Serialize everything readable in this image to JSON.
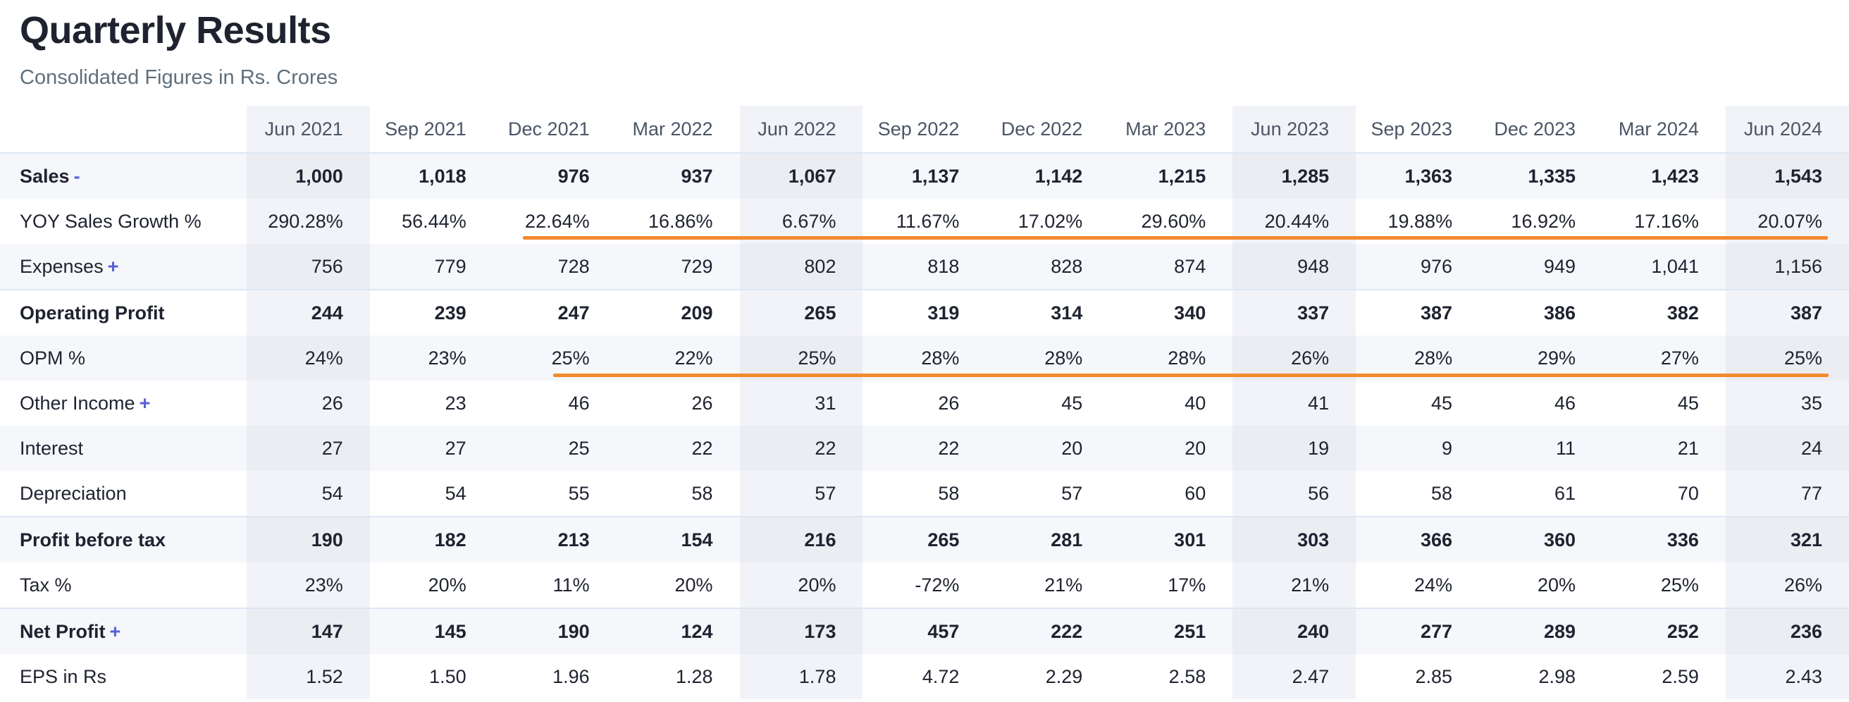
{
  "header": {
    "title": "Quarterly Results",
    "subtitle": "Consolidated Figures in Rs. Crores"
  },
  "table": {
    "columns": [
      "Jun 2021",
      "Sep 2021",
      "Dec 2021",
      "Mar 2022",
      "Jun 2022",
      "Sep 2022",
      "Dec 2022",
      "Mar 2023",
      "Jun 2023",
      "Sep 2023",
      "Dec 2023",
      "Mar 2024",
      "Jun 2024"
    ],
    "highlighted_columns": [
      "Jun 2021",
      "Jun 2022",
      "Jun 2023",
      "Jun 2024"
    ],
    "rows": [
      {
        "label": "Sales",
        "toggle": "-",
        "bold": true,
        "section": false,
        "values": [
          "1,000",
          "1,018",
          "976",
          "937",
          "1,067",
          "1,137",
          "1,142",
          "1,215",
          "1,285",
          "1,363",
          "1,335",
          "1,423",
          "1,543"
        ]
      },
      {
        "label": "YOY Sales Growth %",
        "toggle": "",
        "bold": false,
        "section": false,
        "values": [
          "290.28%",
          "56.44%",
          "22.64%",
          "16.86%",
          "6.67%",
          "11.67%",
          "17.02%",
          "29.60%",
          "20.44%",
          "19.88%",
          "16.92%",
          "17.16%",
          "20.07%"
        ]
      },
      {
        "label": "Expenses",
        "toggle": "+",
        "bold": false,
        "section": false,
        "values": [
          "756",
          "779",
          "728",
          "729",
          "802",
          "818",
          "828",
          "874",
          "948",
          "976",
          "949",
          "1,041",
          "1,156"
        ]
      },
      {
        "label": "Operating Profit",
        "toggle": "",
        "bold": true,
        "section": true,
        "values": [
          "244",
          "239",
          "247",
          "209",
          "265",
          "319",
          "314",
          "340",
          "337",
          "387",
          "386",
          "382",
          "387"
        ]
      },
      {
        "label": "OPM %",
        "toggle": "",
        "bold": false,
        "section": false,
        "values": [
          "24%",
          "23%",
          "25%",
          "22%",
          "25%",
          "28%",
          "28%",
          "28%",
          "26%",
          "28%",
          "29%",
          "27%",
          "25%"
        ]
      },
      {
        "label": "Other Income",
        "toggle": "+",
        "bold": false,
        "section": false,
        "values": [
          "26",
          "23",
          "46",
          "26",
          "31",
          "26",
          "45",
          "40",
          "41",
          "45",
          "46",
          "45",
          "35"
        ]
      },
      {
        "label": "Interest",
        "toggle": "",
        "bold": false,
        "section": false,
        "values": [
          "27",
          "27",
          "25",
          "22",
          "22",
          "22",
          "20",
          "20",
          "19",
          "9",
          "11",
          "21",
          "24"
        ]
      },
      {
        "label": "Depreciation",
        "toggle": "",
        "bold": false,
        "section": false,
        "values": [
          "54",
          "54",
          "55",
          "58",
          "57",
          "58",
          "57",
          "60",
          "56",
          "58",
          "61",
          "70",
          "77"
        ]
      },
      {
        "label": "Profit before tax",
        "toggle": "",
        "bold": true,
        "section": true,
        "values": [
          "190",
          "182",
          "213",
          "154",
          "216",
          "265",
          "281",
          "301",
          "303",
          "366",
          "360",
          "336",
          "321"
        ]
      },
      {
        "label": "Tax %",
        "toggle": "",
        "bold": false,
        "section": false,
        "values": [
          "23%",
          "20%",
          "11%",
          "20%",
          "20%",
          "-72%",
          "21%",
          "17%",
          "21%",
          "24%",
          "20%",
          "25%",
          "26%"
        ]
      },
      {
        "label": "Net Profit",
        "toggle": "+",
        "bold": true,
        "section": true,
        "values": [
          "147",
          "145",
          "190",
          "124",
          "173",
          "457",
          "222",
          "251",
          "240",
          "277",
          "289",
          "252",
          "236"
        ]
      },
      {
        "label": "EPS in Rs",
        "toggle": "",
        "bold": false,
        "section": false,
        "values": [
          "1.52",
          "1.50",
          "1.96",
          "1.28",
          "1.78",
          "4.72",
          "2.29",
          "2.58",
          "2.47",
          "2.85",
          "2.98",
          "2.59",
          "2.43"
        ]
      }
    ]
  },
  "annotations": {
    "underline_color": "#f28a2e",
    "underlined_rows": [
      "YOY Sales Growth %",
      "OPM %"
    ]
  }
}
